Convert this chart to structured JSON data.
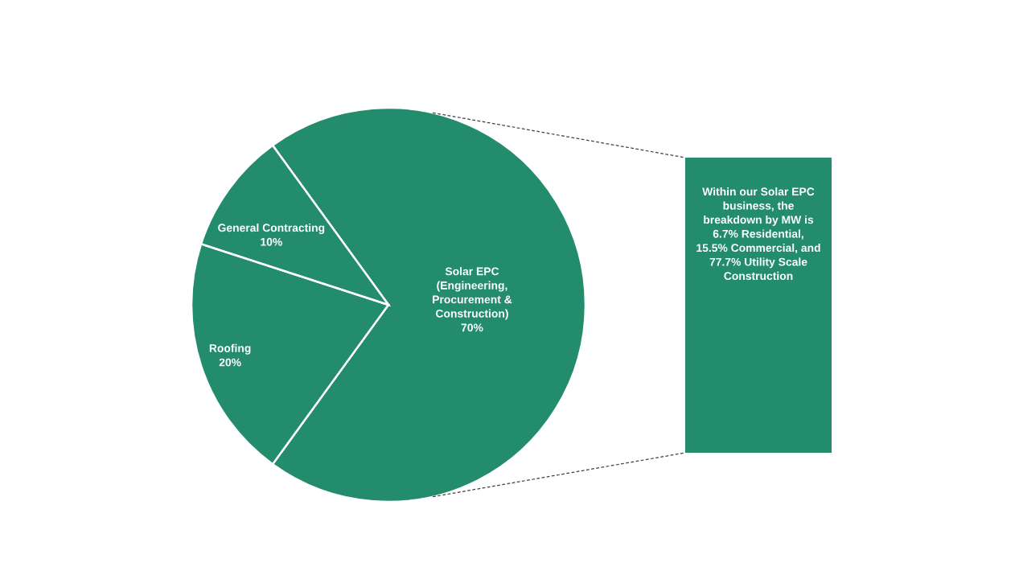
{
  "chart_data": {
    "type": "pie",
    "categories": [
      "Solar EPC\n(Engineering,\nProcurement &\nConstruction)",
      "Roofing",
      "General Contracting"
    ],
    "values": [
      70,
      20,
      10
    ],
    "colors": [
      "#238c6c",
      "#238c6c",
      "#238c6c"
    ],
    "value_labels": [
      "70%",
      "20%",
      "10%"
    ],
    "annotations": [
      "Within our Solar EPC\nbusiness, the\nbreakdown by MW is\n6.7% Residential,\n15.5% Commercial, and\n77.7% Utility Scale\nConstruction"
    ]
  }
}
